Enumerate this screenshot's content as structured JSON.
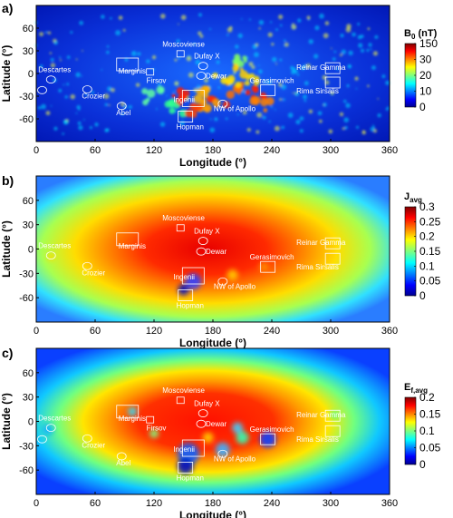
{
  "chart_data": [
    {
      "type": "heatmap",
      "panel": "a)",
      "xlabel": "Longitude (°)",
      "ylabel": "Latitude (°)",
      "xlim": [
        0,
        360
      ],
      "ylim": [
        -90,
        90
      ],
      "xticks": [
        0,
        60,
        120,
        180,
        240,
        300,
        360
      ],
      "yticks": [
        60,
        30,
        0,
        -30,
        -60
      ],
      "colorbar": {
        "label": "B",
        "subscript": "0",
        "suffix": " (nT)",
        "ticks": [
          "150",
          "30",
          "20",
          "10",
          "0"
        ]
      },
      "regions": [
        {
          "name": "Descartes",
          "lon": 15,
          "lat": -8
        },
        {
          "name": "Airy",
          "lon": 6,
          "lat": -22
        },
        {
          "name": "Crozier",
          "lon": 52,
          "lat": -21
        },
        {
          "name": "Abel",
          "lon": 87,
          "lat": -43
        },
        {
          "name": "Marginis",
          "lon": 93,
          "lat": 12
        },
        {
          "name": "Firsov",
          "lon": 116,
          "lat": 2
        },
        {
          "name": "Moscoviense",
          "lon": 147,
          "lat": 26
        },
        {
          "name": "Dufay X",
          "lon": 170,
          "lat": 10
        },
        {
          "name": "Dewar",
          "lon": 168,
          "lat": -3
        },
        {
          "name": "Ingenii",
          "lon": 160,
          "lat": -33
        },
        {
          "name": "Hopman",
          "lon": 152,
          "lat": -57
        },
        {
          "name": "NW of Apollo",
          "lon": 190,
          "lat": -40
        },
        {
          "name": "Gerasimovich",
          "lon": 236,
          "lat": -22
        },
        {
          "name": "Reinar Gamma",
          "lon": 302,
          "lat": 7
        },
        {
          "name": "Rima Sirsalis",
          "lon": 302,
          "lat": -12
        }
      ]
    },
    {
      "type": "heatmap",
      "panel": "b)",
      "xlabel": "Longitude (°)",
      "ylabel": "Latitude (°)",
      "xlim": [
        0,
        360
      ],
      "ylim": [
        -90,
        90
      ],
      "xticks": [
        0,
        60,
        120,
        180,
        240,
        300,
        360
      ],
      "yticks": [
        60,
        30,
        0,
        -30,
        -60
      ],
      "colorbar": {
        "label": "J",
        "subscript": "avg",
        "suffix": "",
        "ticks": [
          "0.3",
          "0.25",
          "0.2",
          "0.15",
          "0.1",
          "0.05",
          "0"
        ]
      },
      "regions": [
        {
          "name": "Descartes",
          "lon": 15,
          "lat": -8
        },
        {
          "name": "Crozier",
          "lon": 52,
          "lat": -21
        },
        {
          "name": "Marginis",
          "lon": 93,
          "lat": 12
        },
        {
          "name": "Moscoviense",
          "lon": 147,
          "lat": 26
        },
        {
          "name": "Dufay X",
          "lon": 170,
          "lat": 10
        },
        {
          "name": "Dewar",
          "lon": 168,
          "lat": -3
        },
        {
          "name": "Ingenii",
          "lon": 160,
          "lat": -33
        },
        {
          "name": "Hopman",
          "lon": 152,
          "lat": -57
        },
        {
          "name": "NW of Apollo",
          "lon": 190,
          "lat": -40
        },
        {
          "name": "Gerasimovich",
          "lon": 236,
          "lat": -22
        },
        {
          "name": "Reinar Gamma",
          "lon": 302,
          "lat": 7
        },
        {
          "name": "Rima Sirsalis",
          "lon": 302,
          "lat": -12
        }
      ]
    },
    {
      "type": "heatmap",
      "panel": "c)",
      "xlabel": "Longitude (°)",
      "ylabel": "Latitude (°)",
      "xlim": [
        0,
        360
      ],
      "ylim": [
        -90,
        90
      ],
      "xticks": [
        0,
        60,
        120,
        180,
        240,
        300,
        360
      ],
      "yticks": [
        60,
        30,
        0,
        -30,
        -60
      ],
      "colorbar": {
        "label": "E",
        "subscript": "f,avg",
        "suffix": "",
        "ticks": [
          "0.2",
          "0.15",
          "0.1",
          "0.05",
          "0"
        ]
      },
      "regions": [
        {
          "name": "Descartes",
          "lon": 15,
          "lat": -8
        },
        {
          "name": "Airy",
          "lon": 6,
          "lat": -22
        },
        {
          "name": "Crozier",
          "lon": 52,
          "lat": -21
        },
        {
          "name": "Abel",
          "lon": 87,
          "lat": -43
        },
        {
          "name": "Marginis",
          "lon": 93,
          "lat": 12
        },
        {
          "name": "Firsov",
          "lon": 116,
          "lat": 2
        },
        {
          "name": "Moscoviense",
          "lon": 147,
          "lat": 26
        },
        {
          "name": "Dufay X",
          "lon": 170,
          "lat": 10
        },
        {
          "name": "Dewar",
          "lon": 168,
          "lat": -3
        },
        {
          "name": "Ingenii",
          "lon": 160,
          "lat": -33
        },
        {
          "name": "Hopman",
          "lon": 152,
          "lat": -57
        },
        {
          "name": "NW of Apollo",
          "lon": 190,
          "lat": -40
        },
        {
          "name": "Gerasimovich",
          "lon": 236,
          "lat": -22
        },
        {
          "name": "Reinar Gamma",
          "lon": 302,
          "lat": 7
        },
        {
          "name": "Rima Sirsalis",
          "lon": 302,
          "lat": -12
        }
      ]
    }
  ]
}
